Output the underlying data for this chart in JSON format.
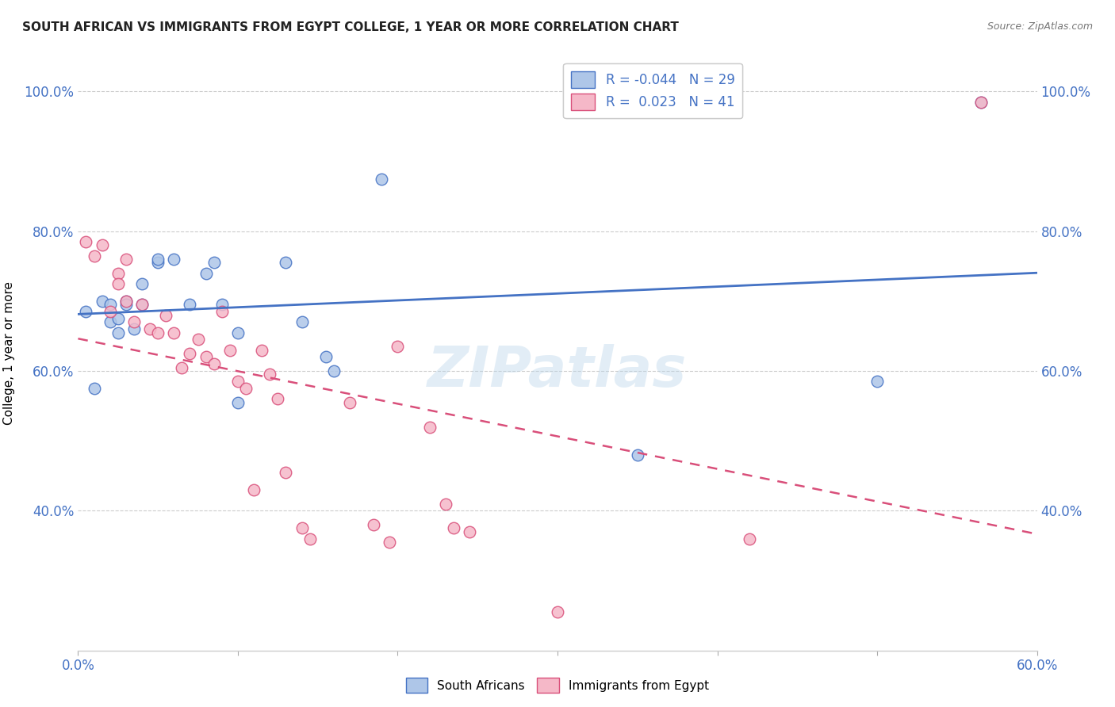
{
  "title": "SOUTH AFRICAN VS IMMIGRANTS FROM EGYPT COLLEGE, 1 YEAR OR MORE CORRELATION CHART",
  "source": "Source: ZipAtlas.com",
  "xlabel": "",
  "ylabel": "College, 1 year or more",
  "xlim": [
    0.0,
    0.6
  ],
  "ylim": [
    0.2,
    1.05
  ],
  "xtick_vals": [
    0.0,
    0.1,
    0.2,
    0.3,
    0.4,
    0.5,
    0.6
  ],
  "xtick_labels_show": [
    "0.0%",
    "",
    "",
    "",
    "",
    "",
    "60.0%"
  ],
  "ytick_vals": [
    0.4,
    0.6,
    0.8,
    1.0
  ],
  "ytick_labels": [
    "40.0%",
    "60.0%",
    "80.0%",
    "100.0%"
  ],
  "blue_R": "-0.044",
  "blue_N": "29",
  "pink_R": "0.023",
  "pink_N": "41",
  "blue_color": "#aec6e8",
  "pink_color": "#f5b8c8",
  "blue_line_color": "#4472c4",
  "pink_line_color": "#d94f7a",
  "watermark": "ZIPatlas",
  "blue_scatter_x": [
    0.005,
    0.01,
    0.015,
    0.02,
    0.02,
    0.025,
    0.025,
    0.03,
    0.03,
    0.035,
    0.04,
    0.04,
    0.05,
    0.05,
    0.06,
    0.07,
    0.08,
    0.085,
    0.09,
    0.1,
    0.1,
    0.13,
    0.14,
    0.155,
    0.16,
    0.19,
    0.35,
    0.5,
    0.565
  ],
  "blue_scatter_y": [
    0.685,
    0.575,
    0.7,
    0.67,
    0.695,
    0.655,
    0.675,
    0.7,
    0.695,
    0.66,
    0.695,
    0.725,
    0.755,
    0.76,
    0.76,
    0.695,
    0.74,
    0.755,
    0.695,
    0.655,
    0.555,
    0.755,
    0.67,
    0.62,
    0.6,
    0.875,
    0.48,
    0.585,
    0.985
  ],
  "pink_scatter_x": [
    0.005,
    0.01,
    0.015,
    0.02,
    0.025,
    0.025,
    0.03,
    0.03,
    0.035,
    0.04,
    0.045,
    0.05,
    0.055,
    0.06,
    0.065,
    0.07,
    0.075,
    0.08,
    0.085,
    0.09,
    0.095,
    0.1,
    0.105,
    0.11,
    0.115,
    0.12,
    0.125,
    0.13,
    0.14,
    0.145,
    0.17,
    0.185,
    0.195,
    0.2,
    0.22,
    0.23,
    0.235,
    0.245,
    0.3,
    0.42,
    0.565
  ],
  "pink_scatter_y": [
    0.785,
    0.765,
    0.78,
    0.685,
    0.74,
    0.725,
    0.76,
    0.7,
    0.67,
    0.695,
    0.66,
    0.655,
    0.68,
    0.655,
    0.605,
    0.625,
    0.645,
    0.62,
    0.61,
    0.685,
    0.63,
    0.585,
    0.575,
    0.43,
    0.63,
    0.595,
    0.56,
    0.455,
    0.375,
    0.36,
    0.555,
    0.38,
    0.355,
    0.635,
    0.52,
    0.41,
    0.375,
    0.37,
    0.255,
    0.36,
    0.985
  ],
  "figsize": [
    14.06,
    8.92
  ],
  "dpi": 100
}
